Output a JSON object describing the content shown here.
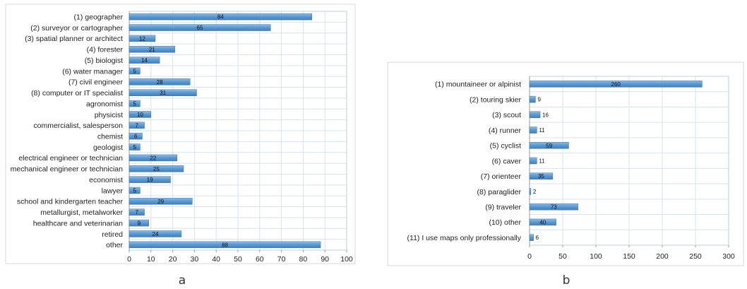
{
  "chart_data": [
    {
      "type": "bar",
      "orientation": "horizontal",
      "panel_label": "a",
      "categories": [
        "(1) geographer",
        "(2) surveyor or cartographer",
        "(3) spatial planner or architect",
        "(4) forester",
        "(5) biologist",
        "(6) water manager",
        "(7) civil engineer",
        "(8) computer or IT specialist",
        "agronomist",
        "physicist",
        "commercialist, salesperson",
        "chemist",
        "geologist",
        "electrical engineer or technician",
        "mechanical engineer or technician",
        "economist",
        "lawyer",
        "school and kindergarten teacher",
        "metallurgist, metalworker",
        "healthcare and veterinarian",
        "retired",
        "other"
      ],
      "values": [
        84,
        65,
        12,
        21,
        14,
        5,
        28,
        31,
        5,
        10,
        7,
        6,
        5,
        22,
        25,
        19,
        5,
        29,
        7,
        9,
        24,
        88
      ],
      "value_labels": [
        "84",
        "65",
        "12",
        "21",
        "14",
        "5",
        "28",
        "31",
        "5",
        "10",
        "7",
        "6",
        "5",
        "22",
        "25",
        "19",
        "5",
        "29",
        "7",
        "9",
        "24",
        "88"
      ],
      "xlim": [
        0,
        100
      ],
      "xticks": [
        0,
        10,
        20,
        30,
        40,
        50,
        60,
        70,
        80,
        90,
        100
      ],
      "xtick_labels": [
        "0",
        "10",
        "20",
        "30",
        "40",
        "50",
        "60",
        "70",
        "80",
        "90",
        "100"
      ],
      "grid": true,
      "bar_color": "#5b9bd5"
    },
    {
      "type": "bar",
      "orientation": "horizontal",
      "panel_label": "b",
      "categories": [
        "(1) mountaineer or alpinist",
        "(2) touring skier",
        "(3) scout",
        "(4) runner",
        "(5) cyclist",
        "(6) caver",
        "(7) orienteer",
        "(8)  paraglider",
        "(9) traveler",
        "(10) other",
        "(11) I use maps only professionally"
      ],
      "values": [
        260,
        9,
        16,
        11,
        59,
        11,
        35,
        2,
        73,
        40,
        6
      ],
      "value_labels": [
        "260",
        "9",
        "16",
        "11",
        "59",
        "11",
        "35",
        "2",
        "73",
        "40",
        "6"
      ],
      "xlim": [
        0,
        300
      ],
      "xticks": [
        0,
        50,
        100,
        150,
        200,
        250,
        300
      ],
      "xtick_labels": [
        "0",
        "50",
        "100",
        "150",
        "200",
        "250",
        "300"
      ],
      "grid": true,
      "bar_color": "#5b9bd5"
    }
  ]
}
